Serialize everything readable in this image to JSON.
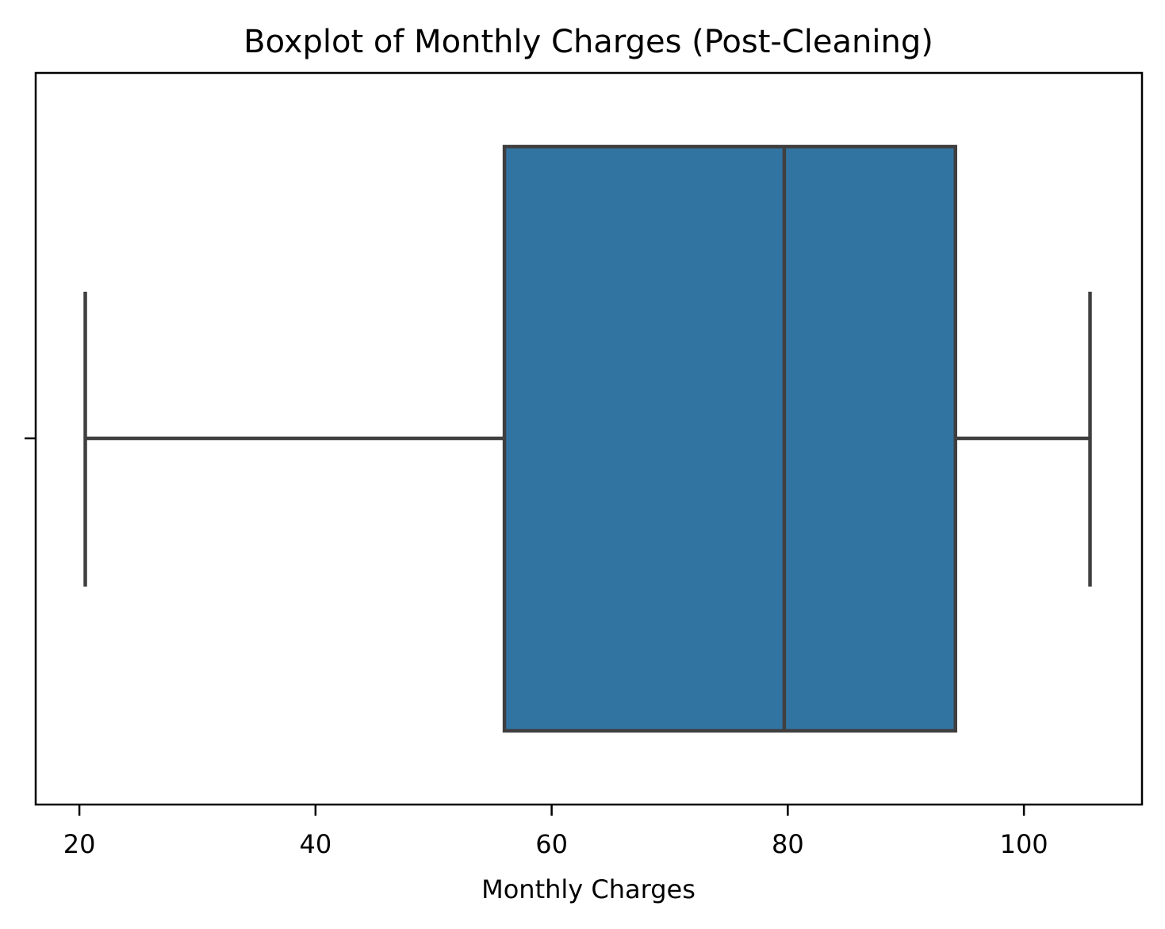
{
  "chart_data": {
    "type": "boxplot",
    "title": "Boxplot of Monthly Charges (Post-Cleaning)",
    "xlabel": "Monthly Charges",
    "ylabel": "",
    "orientation": "horizontal",
    "xlim": [
      16.3,
      110.0
    ],
    "xticks": [
      20,
      40,
      60,
      80,
      100
    ],
    "xtick_labels": [
      "20",
      "40",
      "60",
      "80",
      "100"
    ],
    "grid": false,
    "box": {
      "min": 20.5,
      "q1": 56.0,
      "median": 79.7,
      "q3": 94.2,
      "max": 105.6,
      "fill_color": "#3274a1",
      "line_color": "#3f3f3f"
    }
  }
}
